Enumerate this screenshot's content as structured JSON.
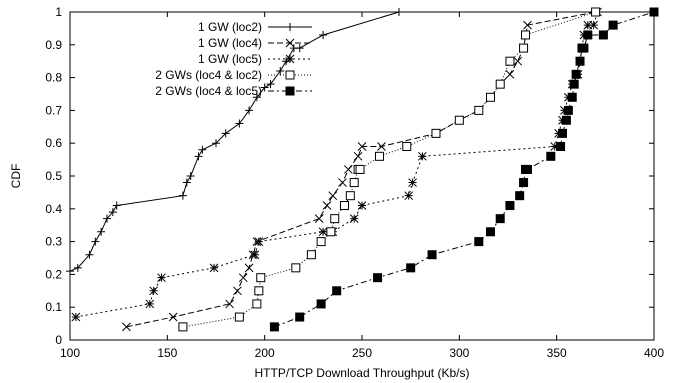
{
  "chart_data": {
    "type": "line",
    "xlabel": "HTTP/TCP Download Throughput (Kb/s)",
    "ylabel": "CDF",
    "xlim": [
      100,
      400
    ],
    "ylim": [
      0,
      1
    ],
    "xticks": [
      100,
      150,
      200,
      250,
      300,
      350,
      400
    ],
    "yticks": [
      0,
      0.1,
      0.2,
      0.3,
      0.4,
      0.5,
      0.6,
      0.7,
      0.8,
      0.9,
      1
    ],
    "xtick_labels": [
      "100",
      "150",
      "200",
      "250",
      "300",
      "350",
      "400"
    ],
    "ytick_labels": [
      "0",
      "0.1",
      "0.2",
      "0.3",
      "0.4",
      "0.5",
      "0.6",
      "0.7",
      "0.8",
      "0.9",
      "1"
    ],
    "grid": false,
    "legend_position": "top-center",
    "series": [
      {
        "name": "1 GW (loc2)",
        "marker": "plus",
        "dash": "solid",
        "x": [
          100,
          104,
          110,
          113,
          116,
          119,
          122,
          124,
          158,
          160,
          162,
          166,
          168,
          175,
          180,
          187,
          192,
          196,
          200,
          203,
          208,
          211,
          215,
          218,
          230,
          269
        ],
        "y": [
          0.21,
          0.22,
          0.26,
          0.3,
          0.33,
          0.37,
          0.39,
          0.41,
          0.44,
          0.48,
          0.5,
          0.56,
          0.58,
          0.6,
          0.63,
          0.66,
          0.7,
          0.74,
          0.77,
          0.78,
          0.82,
          0.85,
          0.89,
          0.89,
          0.93,
          1.0
        ]
      },
      {
        "name": "1 GW (loc4)",
        "marker": "x",
        "dash": "dashed",
        "x": [
          129,
          153,
          182,
          186,
          189,
          192,
          194,
          196,
          228,
          232,
          235,
          240,
          243,
          248,
          250,
          260,
          288,
          300,
          310,
          316,
          321,
          326,
          330,
          333,
          335,
          370
        ],
        "y": [
          0.04,
          0.07,
          0.11,
          0.15,
          0.19,
          0.22,
          0.26,
          0.3,
          0.37,
          0.41,
          0.44,
          0.48,
          0.52,
          0.56,
          0.59,
          0.59,
          0.63,
          0.67,
          0.7,
          0.74,
          0.78,
          0.81,
          0.85,
          0.89,
          0.96,
          1.0
        ]
      },
      {
        "name": "1 GW (loc5)",
        "marker": "star",
        "dash": "dotted",
        "x": [
          103,
          141,
          143,
          147,
          174,
          195,
          197,
          230,
          235,
          246,
          250,
          274,
          276,
          281,
          349,
          351,
          353,
          354,
          356,
          358,
          361,
          362,
          363,
          364,
          366,
          369,
          371
        ],
        "y": [
          0.07,
          0.11,
          0.15,
          0.19,
          0.22,
          0.26,
          0.3,
          0.33,
          0.33,
          0.37,
          0.41,
          0.44,
          0.48,
          0.56,
          0.59,
          0.63,
          0.67,
          0.7,
          0.74,
          0.78,
          0.81,
          0.85,
          0.89,
          0.93,
          0.96,
          0.96,
          1.0
        ]
      },
      {
        "name": "2 GWs (loc4 & loc2)",
        "marker": "box",
        "dash": "densedot",
        "x": [
          158,
          187,
          196,
          197,
          198,
          216,
          224,
          229,
          234,
          236,
          241,
          244,
          246,
          248,
          249,
          259,
          273,
          288,
          300,
          310,
          316,
          321,
          326,
          333,
          334,
          370
        ],
        "y": [
          0.04,
          0.07,
          0.11,
          0.15,
          0.19,
          0.22,
          0.26,
          0.3,
          0.33,
          0.37,
          0.41,
          0.44,
          0.48,
          0.52,
          0.52,
          0.56,
          0.59,
          0.63,
          0.67,
          0.7,
          0.74,
          0.78,
          0.85,
          0.89,
          0.93,
          1.0
        ]
      },
      {
        "name": "2 GWs (loc4 & loc5)",
        "marker": "filledbox",
        "dash": "dashdot",
        "x": [
          205,
          218,
          229,
          237,
          258,
          275,
          286,
          310,
          316,
          321,
          326,
          331,
          333,
          334,
          335,
          347,
          352,
          353,
          355,
          356,
          358,
          359,
          360,
          362,
          363,
          364,
          366,
          374,
          379,
          400
        ],
        "y": [
          0.04,
          0.07,
          0.11,
          0.15,
          0.19,
          0.22,
          0.26,
          0.3,
          0.33,
          0.37,
          0.41,
          0.44,
          0.48,
          0.52,
          0.52,
          0.56,
          0.59,
          0.63,
          0.67,
          0.7,
          0.74,
          0.78,
          0.81,
          0.85,
          0.89,
          0.89,
          0.93,
          0.93,
          0.96,
          1.0
        ]
      }
    ]
  }
}
